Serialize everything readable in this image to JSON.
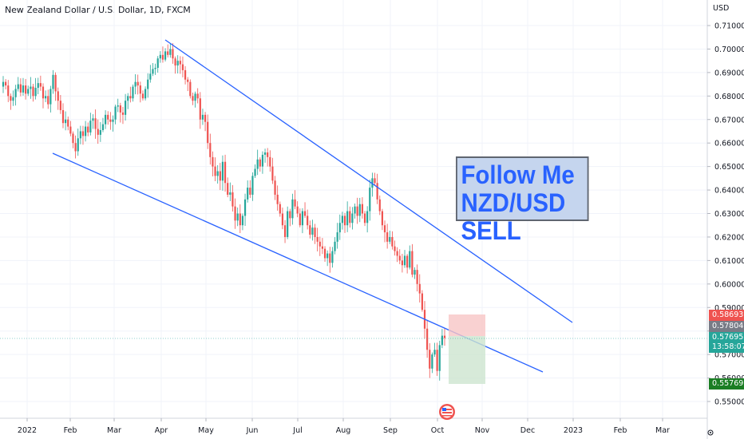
{
  "header": {
    "title": "New Zealand Dollar / U.S. Dollar, 1D, FXCM",
    "currency": "USD"
  },
  "annotation": {
    "line1": "Follow Me",
    "line2": "NZD/USD SELL"
  },
  "price_tags": {
    "stop": {
      "value": "0.58693",
      "color": "#ef5350"
    },
    "entry": {
      "value": "0.57804",
      "color": "#787b86"
    },
    "current": {
      "value": "0.57695",
      "countdown": "13:58:07",
      "color": "#26a69a"
    },
    "target": {
      "value": "0.55769",
      "color": "#1b7e24"
    }
  },
  "colors": {
    "up": "#26a69a",
    "down": "#ef5350",
    "trendline": "#2962ff"
  },
  "icons": {
    "event": "us-flag-event-icon",
    "settings": "settings-icon"
  },
  "chart_data": {
    "type": "candlestick",
    "title": "New Zealand Dollar / U.S. Dollar, 1D, FXCM",
    "ylabel": "USD",
    "ylim": [
      0.545,
      0.715
    ],
    "y_ticks": [
      "0.71000",
      "0.70000",
      "0.69000",
      "0.68000",
      "0.67000",
      "0.66000",
      "0.65000",
      "0.64000",
      "0.63000",
      "0.62000",
      "0.61000",
      "0.60000",
      "0.59000",
      "0.58000",
      "0.57000",
      "0.56000",
      "0.55000"
    ],
    "x_ticks": [
      "2022",
      "Feb",
      "Mar",
      "Apr",
      "May",
      "Jun",
      "Jul",
      "Aug",
      "Sep",
      "Oct",
      "Nov",
      "Dec",
      "2023",
      "Feb",
      "Mar"
    ],
    "closes": [
      0.686,
      0.6845,
      0.68,
      0.678,
      0.6795,
      0.683,
      0.685,
      0.6815,
      0.6845,
      0.681,
      0.683,
      0.684,
      0.68,
      0.6835,
      0.6855,
      0.684,
      0.679,
      0.68,
      0.6765,
      0.683,
      0.689,
      0.682,
      0.678,
      0.674,
      0.6685,
      0.67,
      0.667,
      0.664,
      0.66,
      0.6565,
      0.662,
      0.665,
      0.663,
      0.667,
      0.6645,
      0.6695,
      0.6705,
      0.666,
      0.6635,
      0.6655,
      0.668,
      0.672,
      0.67,
      0.669,
      0.67,
      0.6755,
      0.676,
      0.673,
      0.672,
      0.678,
      0.68,
      0.679,
      0.684,
      0.686,
      0.6845,
      0.681,
      0.679,
      0.683,
      0.687,
      0.6895,
      0.6915,
      0.692,
      0.696,
      0.6975,
      0.6955,
      0.699,
      0.6975,
      0.7,
      0.696,
      0.693,
      0.695,
      0.6935,
      0.691,
      0.687,
      0.686,
      0.68,
      0.678,
      0.681,
      0.679,
      0.67,
      0.672,
      0.669,
      0.66,
      0.654,
      0.65,
      0.646,
      0.648,
      0.644,
      0.652,
      0.643,
      0.638,
      0.639,
      0.633,
      0.627,
      0.63,
      0.625,
      0.629,
      0.636,
      0.641,
      0.638,
      0.646,
      0.649,
      0.653,
      0.65,
      0.655,
      0.656,
      0.654,
      0.65,
      0.644,
      0.638,
      0.634,
      0.63,
      0.625,
      0.62,
      0.631,
      0.628,
      0.636,
      0.633,
      0.63,
      0.625,
      0.631,
      0.629,
      0.625,
      0.621,
      0.624,
      0.62,
      0.618,
      0.616,
      0.615,
      0.611,
      0.613,
      0.609,
      0.614,
      0.618,
      0.622,
      0.626,
      0.629,
      0.625,
      0.631,
      0.626,
      0.63,
      0.633,
      0.629,
      0.634,
      0.63,
      0.626,
      0.631,
      0.641,
      0.645,
      0.643,
      0.636,
      0.631,
      0.625,
      0.622,
      0.618,
      0.62,
      0.616,
      0.614,
      0.612,
      0.61,
      0.608,
      0.612,
      0.607,
      0.614,
      0.604,
      0.606,
      0.6,
      0.596,
      0.589,
      0.581,
      0.572,
      0.564,
      0.57,
      0.572,
      0.563,
      0.574,
      0.578,
      0.577
    ]
  }
}
